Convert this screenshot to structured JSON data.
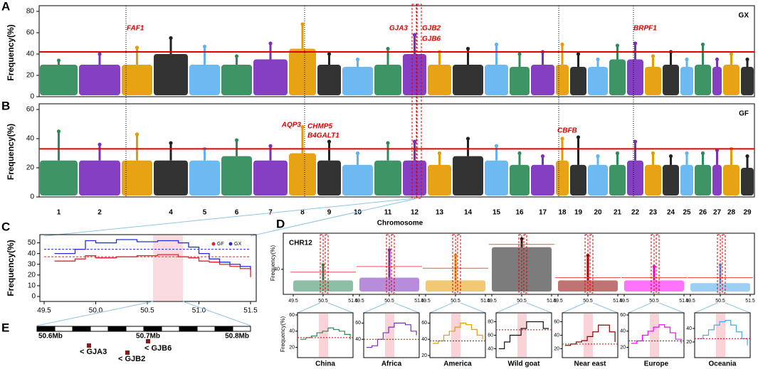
{
  "panel_letters": [
    "A",
    "B",
    "C",
    "D",
    "E"
  ],
  "chart_data": [
    {
      "type": "manhattan",
      "name": "GX",
      "y_label": "Frequency(%)",
      "x_label": "Chromosome",
      "categories": [
        "1",
        "2",
        null,
        "4",
        "5",
        "6",
        "7",
        "8",
        "9",
        "10",
        "11",
        "12",
        "13",
        "14",
        "15",
        "16",
        "17",
        "18",
        "19",
        "20",
        "21",
        "22",
        "23",
        "24",
        "25",
        "26",
        "27",
        "28",
        "29"
      ],
      "colors": [
        "#2e8b57",
        "#7b2fbe",
        "#e69b00",
        "#222222",
        "#5fb4f0"
      ],
      "ylim": [
        0,
        80
      ],
      "yticks": [
        0,
        20,
        40,
        60,
        80
      ],
      "threshold": 42,
      "threshold_color": "#e00000",
      "bulk": [
        30,
        30,
        30,
        40,
        30,
        30,
        35,
        45,
        30,
        28,
        30,
        40,
        30,
        30,
        30,
        28,
        30,
        30,
        28,
        28,
        35,
        35,
        28,
        30,
        28,
        30,
        28,
        30,
        28
      ],
      "peak": [
        34,
        40,
        46,
        55,
        47,
        38,
        50,
        68,
        40,
        35,
        45,
        58,
        42,
        45,
        49,
        40,
        42,
        49,
        40,
        35,
        48,
        50,
        38,
        42,
        35,
        49,
        35,
        40,
        35
      ],
      "genes": [
        "FAF1",
        "GJA3",
        "GJB2",
        "GJB6",
        "BRPF1"
      ]
    },
    {
      "type": "manhattan",
      "name": "GF",
      "y_label": "Frequency(%)",
      "ylim": [
        0,
        60
      ],
      "yticks": [
        0,
        20,
        40,
        60
      ],
      "threshold": 33,
      "bulk": [
        25,
        25,
        25,
        25,
        25,
        28,
        25,
        30,
        25,
        22,
        25,
        25,
        22,
        28,
        25,
        22,
        22,
        25,
        22,
        22,
        22,
        25,
        22,
        22,
        22,
        22,
        22,
        22,
        20
      ],
      "peak": [
        45,
        36,
        43,
        37,
        33,
        39,
        35,
        48,
        38,
        30,
        37,
        38,
        30,
        40,
        35,
        30,
        28,
        40,
        41,
        28,
        30,
        38,
        30,
        28,
        30,
        30,
        32,
        33,
        28
      ],
      "genes": [
        "AQP3",
        "CHMP5",
        "B4GALT1",
        "CBFB"
      ]
    },
    {
      "type": "step",
      "y_label": "Frequency(%)",
      "x": [
        49.6,
        49.8,
        49.9,
        50.0,
        50.2,
        50.4,
        50.6,
        50.8,
        50.9,
        51.0,
        51.1,
        51.2,
        51.3,
        51.4,
        51.5
      ],
      "xlim": [
        49.5,
        51.5
      ],
      "xticks": [
        49.5,
        {
          "value": 50,
          "label": "50.0"
        },
        50.5,
        {
          "value": 51,
          "label": "51.0"
        },
        51.5
      ],
      "ylim": [
        0,
        55
      ],
      "yticks": [
        0,
        10,
        20,
        30,
        40,
        50
      ],
      "series": [
        {
          "name": "GF",
          "color": "#e8202a",
          "threshold": 37,
          "values": [
            33,
            35,
            38,
            36,
            37,
            38,
            39,
            37,
            36,
            33,
            32,
            30,
            28,
            26,
            18
          ]
        },
        {
          "name": "GX",
          "color": "#1f2fe0",
          "threshold": 44,
          "values": [
            40,
            44,
            52,
            50,
            53,
            51,
            52,
            50,
            46,
            40,
            35,
            32,
            30,
            28,
            25
          ]
        }
      ]
    },
    {
      "type": "population",
      "label": "CHR12",
      "y_label": "Frequency(%)",
      "top_ylim": [
        0,
        100
      ],
      "top_yticks": [
        40
      ],
      "xticks": [
        49.5,
        50.5,
        51.5
      ],
      "x": [
        49.6,
        49.8,
        50.0,
        50.2,
        50.4,
        50.6,
        50.8,
        51.0,
        51.2,
        51.4
      ],
      "xlim": [
        49.5,
        51.5
      ],
      "populations": [
        {
          "name": "China",
          "color": "#2e8b57",
          "bulk": 20,
          "peak": 48,
          "top_threshold": 35,
          "ylim": [
            10,
            60
          ],
          "yticks": [
            20,
            40,
            60
          ],
          "threshold": 32,
          "values": [
            30,
            32,
            34,
            38,
            40,
            44,
            42,
            40,
            36,
            30
          ]
        },
        {
          "name": "Africa",
          "color": "#7b2fbe",
          "bulk": 25,
          "peak": 75,
          "top_threshold": 45,
          "ylim": [
            20,
            70
          ],
          "yticks": [
            40,
            60
          ],
          "threshold": 40,
          "values": [
            30,
            32,
            40,
            48,
            55,
            60,
            60,
            58,
            50,
            45
          ]
        },
        {
          "name": "America",
          "color": "#e69b00",
          "bulk": 20,
          "peak": 65,
          "top_threshold": 42,
          "ylim": [
            20,
            70
          ],
          "yticks": [
            20,
            40,
            60
          ],
          "threshold": 38,
          "values": [
            35,
            38,
            45,
            50,
            55,
            60,
            58,
            52,
            45,
            40
          ]
        },
        {
          "name": "Wild goat",
          "color": "#111111",
          "bulk": 80,
          "peak": 95,
          "top_threshold": 85,
          "ylim": [
            30,
            90
          ],
          "yticks": [
            40,
            60,
            80
          ],
          "threshold": 68,
          "values": [
            40,
            50,
            60,
            60,
            70,
            80,
            80,
            80,
            70,
            70
          ]
        },
        {
          "name": "Near east",
          "color": "#8b0000",
          "bulk": 20,
          "peak": 65,
          "top_threshold": 25,
          "ylim": [
            10,
            70
          ],
          "yticks": [
            20,
            40,
            60
          ],
          "threshold": 27,
          "values": [
            25,
            27,
            30,
            32,
            38,
            45,
            55,
            55,
            45,
            30
          ]
        },
        {
          "name": "Europe",
          "color": "#ff00ff",
          "bulk": 20,
          "peak": 45,
          "top_threshold": 25,
          "ylim": [
            10,
            60
          ],
          "yticks": [
            20,
            40,
            60
          ],
          "threshold": 28,
          "values": [
            25,
            28,
            35,
            40,
            45,
            48,
            45,
            38,
            30,
            25
          ]
        },
        {
          "name": "Oceania",
          "color": "#4aa8e8",
          "bulk": 15,
          "peak": 48,
          "top_threshold": 25,
          "ylim": [
            0,
            60
          ],
          "yticks": [
            20,
            40
          ],
          "threshold": 25,
          "values": [
            25,
            30,
            38,
            45,
            50,
            52,
            45,
            35,
            25,
            15
          ]
        }
      ]
    }
  ],
  "gene_map": {
    "scale_labels": [
      "50.6Mb",
      "50.7Mb",
      "50.8Mb"
    ],
    "genes": [
      "< GJA3",
      "< GJB2",
      "< GJB6"
    ]
  }
}
